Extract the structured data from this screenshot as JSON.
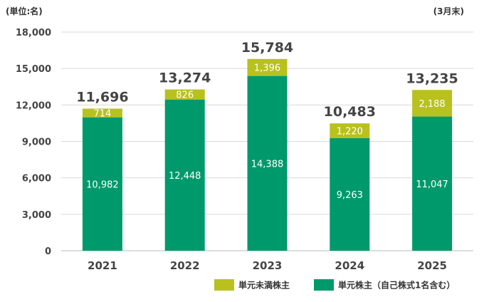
{
  "chart_data": {
    "type": "bar",
    "stacked": true,
    "unit_label": "(単位:名)",
    "period_label": "(3月末)",
    "categories": [
      "2021",
      "2022",
      "2023",
      "2024",
      "2025"
    ],
    "ylim": [
      0,
      18000
    ],
    "yticks": [
      "0",
      "3,000",
      "6,000",
      "9,000",
      "12,000",
      "15,000",
      "18,000"
    ],
    "ytick_values": [
      0,
      3000,
      6000,
      9000,
      12000,
      15000,
      18000
    ],
    "grid": true,
    "legend_position": "bottom-right",
    "series": [
      {
        "name": "単元株主（自己株式1名含む）",
        "color": "#00996b",
        "values": [
          10982,
          12448,
          14388,
          9263,
          11047
        ],
        "labels": [
          "10,982",
          "12,448",
          "14,388",
          "9,263",
          "11,047"
        ]
      },
      {
        "name": "単元未満株主",
        "color": "#b8c11e",
        "values": [
          714,
          826,
          1396,
          1220,
          2188
        ],
        "labels": [
          "714",
          "826",
          "1,396",
          "1,220",
          "2,188"
        ]
      }
    ],
    "totals": [
      11696,
      13274,
      15784,
      10483,
      13235
    ],
    "total_labels": [
      "11,696",
      "13,274",
      "15,784",
      "10,483",
      "13,235"
    ]
  }
}
